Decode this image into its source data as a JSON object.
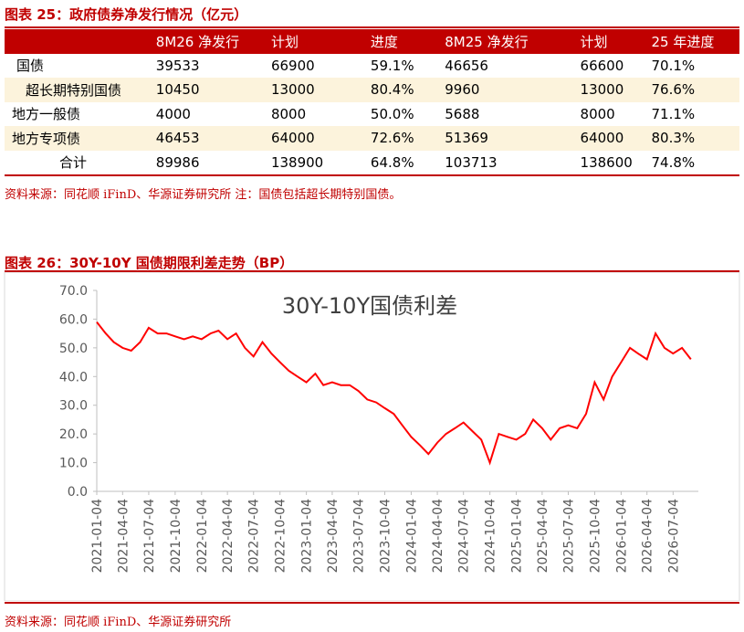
{
  "table_section": {
    "title": "图表 25：政府债券净发行情况（亿元）",
    "columns": [
      "8M26 净发行",
      "计划",
      "进度",
      "8M25 净发行",
      "计划",
      "25 年进度"
    ],
    "rows": [
      [
        "国债",
        "39533",
        "66900",
        "59.1%",
        "46656",
        "66600",
        "70.1%"
      ],
      [
        "超长期特别国债",
        "10450",
        "13000",
        "80.4%",
        "9960",
        "13000",
        "76.6%"
      ],
      [
        "地方一般债",
        "4000",
        "8000",
        "50.0%",
        "5688",
        "8000",
        "71.1%"
      ],
      [
        "地方专项债",
        "46453",
        "64000",
        "72.6%",
        "51369",
        "64000",
        "80.3%"
      ],
      [
        "合计",
        "89986",
        "138900",
        "64.8%",
        "103713",
        "138600",
        "74.8%"
      ]
    ],
    "source": "资料来源：同花顺 iFinD、华源证券研究所 注：国债包括超长期特别国债。"
  },
  "chart_section": {
    "title": "图表 26：30Y-10Y 国债期限利差走势（BP）",
    "source": "资料来源：同花顺 iFinD、华源证券研究所"
  },
  "chart_data": {
    "type": "line",
    "x": [
      "2021-01-04",
      "2021-02-04",
      "2021-03-04",
      "2021-04-04",
      "2021-05-04",
      "2021-06-04",
      "2021-07-04",
      "2021-08-04",
      "2021-09-04",
      "2021-10-04",
      "2021-11-04",
      "2021-12-04",
      "2022-01-04",
      "2022-02-04",
      "2022-03-04",
      "2022-04-04",
      "2022-05-04",
      "2022-06-04",
      "2022-07-04",
      "2022-08-04",
      "2022-09-04",
      "2022-10-04",
      "2022-11-04",
      "2022-12-04",
      "2023-01-04",
      "2023-02-04",
      "2023-03-04",
      "2023-04-04",
      "2023-05-04",
      "2023-06-04",
      "2023-07-04",
      "2023-08-04",
      "2023-09-04",
      "2023-10-04",
      "2023-11-04",
      "2023-12-04",
      "2024-01-04",
      "2024-02-04",
      "2024-03-04",
      "2024-04-04",
      "2024-05-04",
      "2024-06-04",
      "2024-07-04",
      "2024-08-04",
      "2024-09-04",
      "2024-10-04",
      "2024-11-04",
      "2024-12-04",
      "2025-01-04",
      "2025-02-04",
      "2025-03-04",
      "2025-04-04",
      "2025-05-04",
      "2025-06-04",
      "2025-07-04",
      "2025-08-04",
      "2025-09-04",
      "2025-10-04",
      "2025-11-04",
      "2025-12-04",
      "2026-01-04",
      "2026-02-04",
      "2026-03-04",
      "2026-04-04",
      "2026-05-04",
      "2026-06-04",
      "2026-07-04",
      "2026-08-04",
      "2026-09-04"
    ],
    "series": [
      {
        "name": "30Y-10Y国债利差",
        "color": "#ff0000",
        "values": [
          59,
          55,
          52,
          50,
          49,
          52,
          57,
          55,
          55,
          54,
          53,
          54,
          53,
          55,
          56,
          53,
          55,
          50,
          47,
          52,
          48,
          45,
          42,
          40,
          38,
          41,
          37,
          38,
          37,
          37,
          35,
          32,
          31,
          29,
          27,
          23,
          19,
          16,
          13,
          17,
          20,
          22,
          24,
          21,
          18,
          10,
          20,
          19,
          18,
          20,
          25,
          22,
          18,
          22,
          23,
          22,
          27,
          38,
          32,
          40,
          45,
          50,
          48,
          46,
          55,
          50,
          48,
          50,
          46
        ]
      }
    ],
    "xlim": [
      "2021-01-04",
      "2026-09-30"
    ],
    "xticks": [
      "2021-01-04",
      "2021-04-04",
      "2021-07-04",
      "2021-10-04",
      "2022-01-04",
      "2022-04-04",
      "2022-07-04",
      "2022-10-04",
      "2023-01-04",
      "2023-04-04",
      "2023-07-04",
      "2023-10-04",
      "2024-01-04",
      "2024-04-04",
      "2024-07-04",
      "2024-10-04",
      "2025-01-04",
      "2025-04-04",
      "2025-07-04",
      "2025-10-04",
      "2026-01-04",
      "2026-04-04",
      "2026-07-04"
    ],
    "ylim": [
      0,
      70
    ],
    "yticks": [
      {
        "value": 0,
        "label": "0.0"
      },
      {
        "value": 10,
        "label": "10.0"
      },
      {
        "value": 20,
        "label": "20.0"
      },
      {
        "value": 30,
        "label": "30.0"
      },
      {
        "value": 40,
        "label": "40.0"
      },
      {
        "value": 50,
        "label": "50.0"
      },
      {
        "value": 60,
        "label": "60.0"
      },
      {
        "value": 70,
        "label": "70.0"
      }
    ],
    "grid": false
  }
}
